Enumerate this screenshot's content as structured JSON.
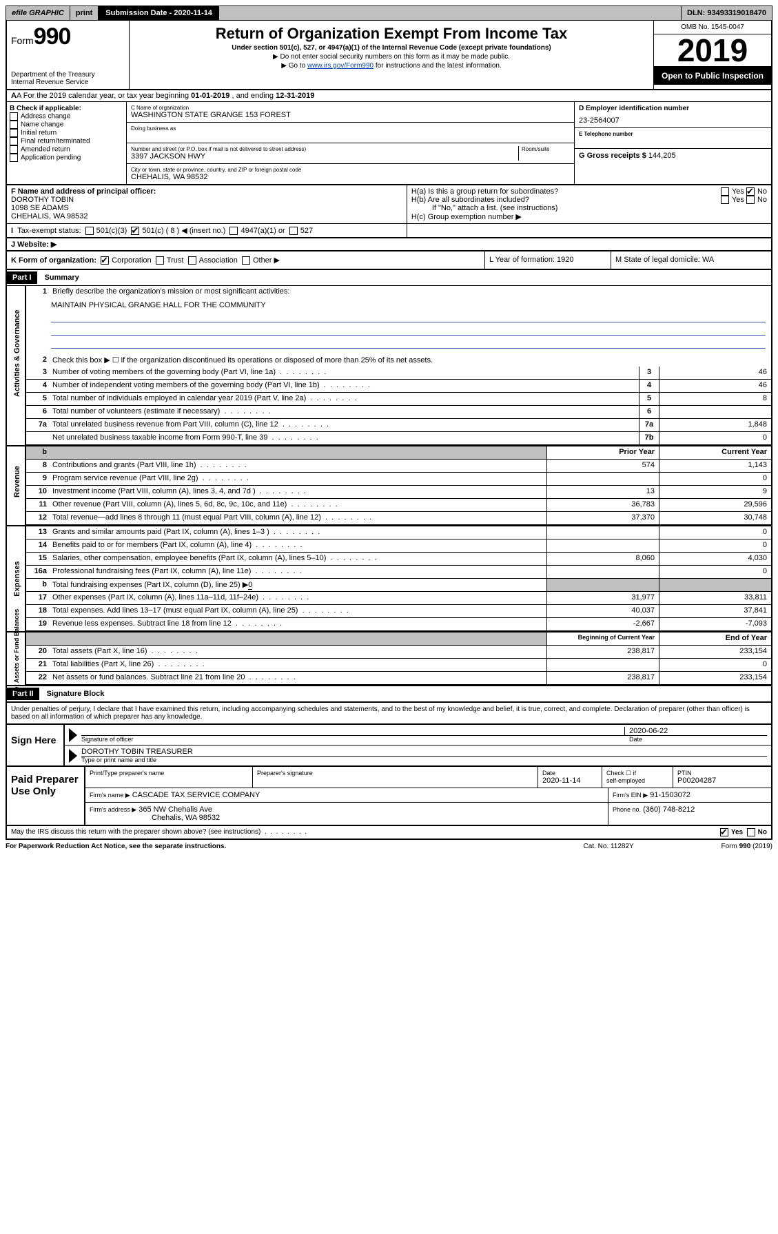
{
  "topbar": {
    "efile": "efile GRAPHIC",
    "print": "print",
    "submission": "Submission Date - 2020-11-14",
    "dln": "DLN: 93493319018470"
  },
  "header": {
    "form_prefix": "Form",
    "form_number": "990",
    "title": "Return of Organization Exempt From Income Tax",
    "sub1": "Under section 501(c), 527, or 4947(a)(1) of the Internal Revenue Code (except private foundations)",
    "sub2": "▶ Do not enter social security numbers on this form as it may be made public.",
    "sub3_a": "▶ Go to ",
    "sub3_link": "www.irs.gov/Form990",
    "sub3_b": " for instructions and the latest information.",
    "dept": "Department of the Treasury\nInternal Revenue Service",
    "omb": "OMB No. 1545-0047",
    "year": "2019",
    "open": "Open to Public Inspection"
  },
  "rowA": {
    "text_a": "A For the 2019 calendar year, or tax year beginning ",
    "begin": "01-01-2019",
    "text_b": " , and ending ",
    "end": "12-31-2019"
  },
  "boxB": {
    "hdr": "B Check if applicable:",
    "items": [
      "Address change",
      "Name change",
      "Initial return",
      "Final return/terminated",
      "Amended return",
      "Application pending"
    ]
  },
  "boxC": {
    "name_lbl": "C Name of organization",
    "name": "WASHINGTON STATE GRANGE 153 FOREST",
    "dba_lbl": "Doing business as",
    "addr_lbl": "Number and street (or P.O. box if mail is not delivered to street address)",
    "room_lbl": "Room/suite",
    "addr": "3397 JACKSON HWY",
    "city_lbl": "City or town, state or province, country, and ZIP or foreign postal code",
    "city": "CHEHALIS, WA  98532"
  },
  "boxD": {
    "lbl": "D Employer identification number",
    "val": "23-2564007"
  },
  "boxE": {
    "lbl": "E Telephone number",
    "val": ""
  },
  "boxG": {
    "lbl": "G Gross receipts $",
    "val": "144,205"
  },
  "boxF": {
    "lbl": "F Name and address of principal officer:",
    "name": "DOROTHY TOBIN",
    "addr1": "1098 SE ADAMS",
    "addr2": "CHEHALIS, WA  98532"
  },
  "boxH": {
    "a": "H(a) Is this a group return for subordinates?",
    "b": "H(b) Are all subordinates included?",
    "ifno": "If \"No,\" attach a list. (see instructions)",
    "c": "H(c) Group exemption number ▶"
  },
  "taxExempt": {
    "lbl": "Tax-exempt status:",
    "num": "501(c) ( 8 ) ◀ (insert no.)",
    "c3": "501(c)(3)",
    "a1": "4947(a)(1) or",
    "c527": "527"
  },
  "website": {
    "lbl": "J   Website: ▶"
  },
  "rowK": {
    "lbl": "K Form of organization:",
    "opts": [
      "Corporation",
      "Trust",
      "Association",
      "Other ▶"
    ],
    "L": "L Year of formation: 1920",
    "M": "M State of legal domicile: WA"
  },
  "part1": {
    "hdr": "Part I",
    "title": "Summary"
  },
  "gov": {
    "q1": "Briefly describe the organization's mission or most significant activities:",
    "mission": "MAINTAIN PHYSICAL GRANGE HALL FOR THE COMMUNITY",
    "q2": "Check this box ▶ ☐  if the organization discontinued its operations or disposed of more than 25% of its net assets.",
    "lines": [
      {
        "n": "3",
        "d": "Number of voting members of the governing body (Part VI, line 1a)",
        "box": "3",
        "v": "46"
      },
      {
        "n": "4",
        "d": "Number of independent voting members of the governing body (Part VI, line 1b)",
        "box": "4",
        "v": "46"
      },
      {
        "n": "5",
        "d": "Total number of individuals employed in calendar year 2019 (Part V, line 2a)",
        "box": "5",
        "v": "8"
      },
      {
        "n": "6",
        "d": "Total number of volunteers (estimate if necessary)",
        "box": "6",
        "v": ""
      },
      {
        "n": "7a",
        "d": "Total unrelated business revenue from Part VIII, column (C), line 12",
        "box": "7a",
        "v": "1,848"
      },
      {
        "n": "",
        "d": "Net unrelated business taxable income from Form 990-T, line 39",
        "box": "7b",
        "v": "0"
      }
    ],
    "side": "Activities & Governance"
  },
  "colhdr": {
    "prior": "Prior Year",
    "current": "Current Year"
  },
  "rev": {
    "side": "Revenue",
    "lines": [
      {
        "n": "8",
        "d": "Contributions and grants (Part VIII, line 1h)",
        "p": "574",
        "c": "1,143"
      },
      {
        "n": "9",
        "d": "Program service revenue (Part VIII, line 2g)",
        "p": "",
        "c": "0"
      },
      {
        "n": "10",
        "d": "Investment income (Part VIII, column (A), lines 3, 4, and 7d )",
        "p": "13",
        "c": "9"
      },
      {
        "n": "11",
        "d": "Other revenue (Part VIII, column (A), lines 5, 6d, 8c, 9c, 10c, and 11e)",
        "p": "36,783",
        "c": "29,596"
      },
      {
        "n": "12",
        "d": "Total revenue—add lines 8 through 11 (must equal Part VIII, column (A), line 12)",
        "p": "37,370",
        "c": "30,748"
      }
    ]
  },
  "exp": {
    "side": "Expenses",
    "lines": [
      {
        "n": "13",
        "d": "Grants and similar amounts paid (Part IX, column (A), lines 1–3 )",
        "p": "",
        "c": "0"
      },
      {
        "n": "14",
        "d": "Benefits paid to or for members (Part IX, column (A), line 4)",
        "p": "",
        "c": "0"
      },
      {
        "n": "15",
        "d": "Salaries, other compensation, employee benefits (Part IX, column (A), lines 5–10)",
        "p": "8,060",
        "c": "4,030"
      },
      {
        "n": "16a",
        "d": "Professional fundraising fees (Part IX, column (A), line 11e)",
        "p": "",
        "c": "0"
      }
    ],
    "bline": {
      "n": "b",
      "d": "Total fundraising expenses (Part IX, column (D), line 25) ▶",
      "u": "0"
    },
    "lines2": [
      {
        "n": "17",
        "d": "Other expenses (Part IX, column (A), lines 11a–11d, 11f–24e)",
        "p": "31,977",
        "c": "33,811"
      },
      {
        "n": "18",
        "d": "Total expenses. Add lines 13–17 (must equal Part IX, column (A), line 25)",
        "p": "40,037",
        "c": "37,841"
      },
      {
        "n": "19",
        "d": "Revenue less expenses. Subtract line 18 from line 12",
        "p": "-2,667",
        "c": "-7,093"
      }
    ]
  },
  "na": {
    "side": "Net Assets or Fund Balances",
    "hdr": {
      "beg": "Beginning of Current Year",
      "end": "End of Year"
    },
    "lines": [
      {
        "n": "20",
        "d": "Total assets (Part X, line 16)",
        "p": "238,817",
        "c": "233,154"
      },
      {
        "n": "21",
        "d": "Total liabilities (Part X, line 26)",
        "p": "",
        "c": "0"
      },
      {
        "n": "22",
        "d": "Net assets or fund balances. Subtract line 21 from line 20",
        "p": "238,817",
        "c": "233,154"
      }
    ]
  },
  "part2": {
    "hdr": "Part II",
    "title": "Signature Block"
  },
  "perjury": "Under penalties of perjury, I declare that I have examined this return, including accompanying schedules and statements, and to the best of my knowledge and belief, it is true, correct, and complete. Declaration of preparer (other than officer) is based on all information of which preparer has any knowledge.",
  "sign": {
    "here": "Sign Here",
    "date": "2020-06-22",
    "sig_lbl": "Signature of officer",
    "date_lbl": "Date",
    "name": "DOROTHY TOBIN  TREASURER",
    "name_lbl": "Type or print name and title"
  },
  "prep": {
    "left": "Paid Preparer Use Only",
    "h1": "Print/Type preparer's name",
    "h2": "Preparer's signature",
    "h3": "Date",
    "h3v": "2020-11-14",
    "h4a": "Check ☐ if",
    "h4b": "self-employed",
    "h5": "PTIN",
    "h5v": "P00204287",
    "firm_lbl": "Firm's name    ▶",
    "firm": "CASCADE TAX SERVICE COMPANY",
    "ein_lbl": "Firm's EIN ▶",
    "ein": "91-1503072",
    "addr_lbl": "Firm's address ▶",
    "addr1": "365 NW Chehalis Ave",
    "addr2": "Chehalis, WA  98532",
    "phone_lbl": "Phone no.",
    "phone": "(360) 748-8212"
  },
  "footer": {
    "q": "May the IRS discuss this return with the preparer shown above? (see instructions)",
    "yes": "Yes",
    "no": "No"
  },
  "bottom": {
    "l": "For Paperwork Reduction Act Notice, see the separate instructions.",
    "m": "Cat. No. 11282Y",
    "r": "Form 990 (2019)"
  }
}
